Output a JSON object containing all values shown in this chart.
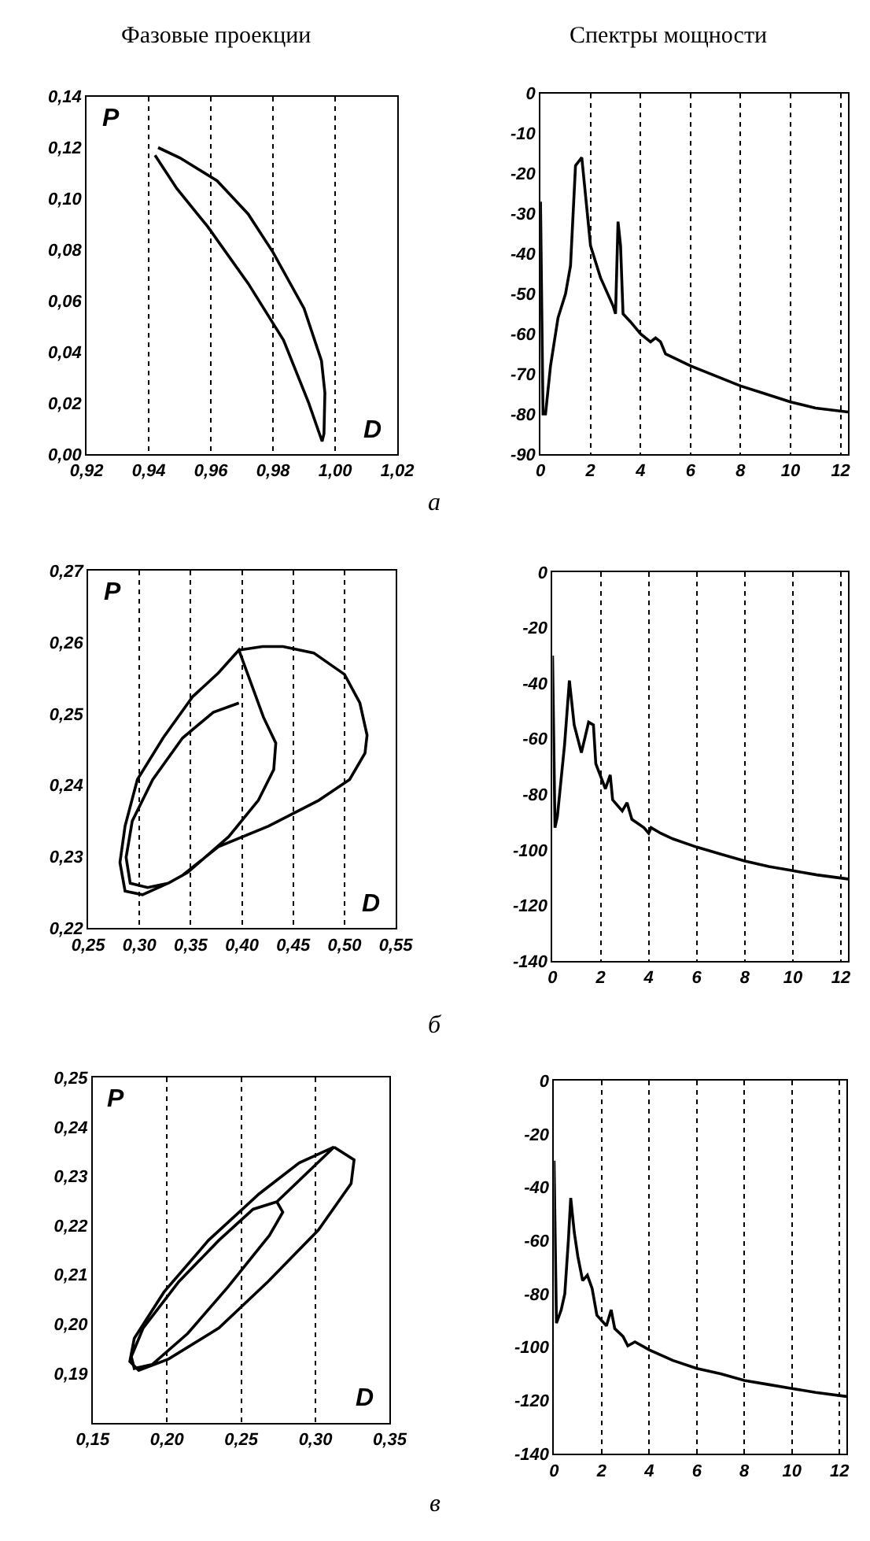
{
  "chart_data": [
    {
      "type": "line",
      "title": "Фазовые проекции",
      "xlabel": "D",
      "ylabel": "P",
      "annotations": [
        "а"
      ],
      "grid": "x",
      "line_style": "solid",
      "xlim": [
        0.92,
        1.02
      ],
      "xticks": [
        {
          "value": 0.92,
          "label": "0,92"
        },
        {
          "value": 0.94,
          "label": "0,94"
        },
        {
          "value": 0.96,
          "label": "0,96"
        },
        {
          "value": 0.98,
          "label": "0,98"
        },
        {
          "value": 1.0,
          "label": "1,00"
        },
        {
          "value": 1.02,
          "label": "1,02"
        }
      ],
      "ylim": [
        0,
        0.14
      ],
      "yticks": [
        {
          "value": 0,
          "label": "0,00"
        },
        {
          "value": 0.02,
          "label": "0,02"
        },
        {
          "value": 0.04,
          "label": "0,04"
        },
        {
          "value": 0.06,
          "label": "0,06"
        },
        {
          "value": 0.08,
          "label": "0,08"
        },
        {
          "value": 0.1,
          "label": "0,10"
        },
        {
          "value": 0.12,
          "label": "0,12"
        },
        {
          "value": 0.14,
          "label": "0,14"
        }
      ],
      "series": [
        {
          "color": "#000000",
          "x": [
            0.943,
            0.95,
            0.962,
            0.972,
            0.98,
            0.99,
            0.9956,
            0.9967,
            0.9964,
            0.9958,
            0.9915,
            0.9834,
            0.972,
            0.959,
            0.949,
            0.942
          ],
          "values": [
            0.12,
            0.116,
            0.107,
            0.094,
            0.079,
            0.057,
            0.0365,
            0.024,
            0.008,
            0.005,
            0.02,
            0.0446,
            0.0668,
            0.089,
            0.104,
            0.117
          ]
        }
      ]
    },
    {
      "type": "line",
      "title": "Спектры мощности",
      "grid": "x",
      "line_style": "solid",
      "xlim": [
        0,
        12.3
      ],
      "xticks": [
        0,
        2,
        4,
        6,
        8,
        10,
        12
      ],
      "ylim": [
        -90,
        0
      ],
      "yticks": [
        -90,
        -80,
        -70,
        -60,
        -50,
        -40,
        -30,
        -20,
        -10,
        0
      ],
      "series": [
        {
          "color": "#000000",
          "x": [
            0,
            0.1,
            0.2,
            0.4,
            0.7,
            1.0,
            1.2,
            1.4,
            1.65,
            2.0,
            2.4,
            2.9,
            3.0,
            3.1,
            3.2,
            3.3,
            3.6,
            4.0,
            4.4,
            4.6,
            4.8,
            5.0,
            6,
            7,
            8,
            9,
            10,
            11,
            12.3
          ],
          "values": [
            -27,
            -80,
            -80,
            -68,
            -56,
            -50,
            -43,
            -18,
            -16,
            -38,
            -46,
            -53,
            -55,
            -32,
            -38,
            -55,
            -57,
            -60,
            -62,
            -61,
            -62,
            -65,
            -68,
            -70.5,
            -73,
            -75,
            -77,
            -78.5,
            -79.5
          ]
        }
      ]
    },
    {
      "type": "line",
      "xlabel": "D",
      "ylabel": "P",
      "annotations": [
        "б"
      ],
      "grid": "x",
      "line_style": "solid",
      "xlim": [
        0.25,
        0.55
      ],
      "xticks": [
        {
          "value": 0.25,
          "label": "0,25"
        },
        {
          "value": 0.3,
          "label": "0,30"
        },
        {
          "value": 0.35,
          "label": "0,35"
        },
        {
          "value": 0.4,
          "label": "0,40"
        },
        {
          "value": 0.45,
          "label": "0,45"
        },
        {
          "value": 0.5,
          "label": "0,50"
        },
        {
          "value": 0.55,
          "label": "0,55"
        }
      ],
      "ylim": [
        0.22,
        0.27
      ],
      "yticks": [
        {
          "value": 0.22,
          "label": "0,22"
        },
        {
          "value": 0.23,
          "label": "0,23"
        },
        {
          "value": 0.24,
          "label": "0,24"
        },
        {
          "value": 0.25,
          "label": "0,25"
        },
        {
          "value": 0.26,
          "label": "0,26"
        },
        {
          "value": 0.27,
          "label": "0,27"
        }
      ],
      "series": [
        {
          "color": "#000000",
          "x": [
            0.397,
            0.42,
            0.44,
            0.47,
            0.5,
            0.515,
            0.522,
            0.52,
            0.505,
            0.475,
            0.426,
            0.377,
            0.342,
            0.328,
            0.303,
            0.286,
            0.281,
            0.286,
            0.298,
            0.323,
            0.352,
            0.377,
            0.397,
            0.421,
            0.433,
            0.431,
            0.416,
            0.387,
            0.347,
            0.328,
            0.308,
            0.291,
            0.287,
            0.293,
            0.313,
            0.342,
            0.372,
            0.397
          ],
          "values": [
            0.2589,
            0.2594,
            0.2594,
            0.2585,
            0.2555,
            0.2515,
            0.247,
            0.2445,
            0.2408,
            0.2379,
            0.2343,
            0.2314,
            0.2274,
            0.2263,
            0.2247,
            0.2252,
            0.2292,
            0.2343,
            0.2408,
            0.2466,
            0.2524,
            0.2557,
            0.2589,
            0.2495,
            0.2459,
            0.2422,
            0.2379,
            0.2328,
            0.2278,
            0.2263,
            0.2257,
            0.2263,
            0.2299,
            0.235,
            0.2408,
            0.2466,
            0.2502,
            0.2515
          ]
        }
      ]
    },
    {
      "type": "line",
      "grid": "x",
      "line_style": "solid",
      "xlim": [
        0,
        12.3
      ],
      "xticks": [
        0,
        2,
        4,
        6,
        8,
        10,
        12
      ],
      "ylim": [
        -140,
        0
      ],
      "yticks": [
        -140,
        -120,
        -100,
        -80,
        -60,
        -40,
        -20,
        0
      ],
      "series": [
        {
          "color": "#000000",
          "x": [
            0,
            0.1,
            0.2,
            0.5,
            0.7,
            0.9,
            1.2,
            1.5,
            1.7,
            1.8,
            2.2,
            2.4,
            2.5,
            2.9,
            3.1,
            3.3,
            3.8,
            4.0,
            4.1,
            4.5,
            5,
            6,
            7,
            8,
            9,
            10,
            11,
            12.3
          ],
          "values": [
            -30,
            -92,
            -88,
            -62,
            -39,
            -55,
            -65,
            -54,
            -55,
            -69,
            -78,
            -73,
            -82,
            -86,
            -83,
            -89,
            -92,
            -94,
            -92,
            -94,
            -96,
            -99,
            -101.5,
            -104,
            -106,
            -107.5,
            -109,
            -110.5
          ]
        }
      ]
    },
    {
      "type": "line",
      "xlabel": "D",
      "ylabel": "P",
      "annotations": [
        "в"
      ],
      "grid": "x",
      "line_style": "solid",
      "xlim": [
        0.15,
        0.35
      ],
      "xticks": [
        {
          "value": 0.15,
          "label": "0,15"
        },
        {
          "value": 0.2,
          "label": "0,20"
        },
        {
          "value": 0.25,
          "label": "0,25"
        },
        {
          "value": 0.3,
          "label": "0,30"
        },
        {
          "value": 0.35,
          "label": "0,35"
        }
      ],
      "ylim": [
        0.18,
        0.25
      ],
      "yticks": [
        {
          "value": 0.19,
          "label": "0,19"
        },
        {
          "value": 0.2,
          "label": "0,20"
        },
        {
          "value": 0.21,
          "label": "0,21"
        },
        {
          "value": 0.22,
          "label": "0,22"
        },
        {
          "value": 0.23,
          "label": "0,23"
        },
        {
          "value": 0.24,
          "label": "0,24"
        },
        {
          "value": 0.25,
          "label": "0,25"
        }
      ],
      "series": [
        {
          "color": "#000000",
          "x": [
            0.3125,
            0.326,
            0.324,
            0.302,
            0.268,
            0.235,
            0.201,
            0.181,
            0.175,
            0.178,
            0.198,
            0.228,
            0.262,
            0.289,
            0.3125,
            0.274,
            0.278,
            0.269,
            0.241,
            0.214,
            0.19,
            0.178,
            0.176,
            0.184,
            0.208,
            0.235,
            0.258,
            0.274
          ],
          "values": [
            0.2359,
            0.2333,
            0.2285,
            0.2191,
            0.2086,
            0.1992,
            0.1929,
            0.1906,
            0.1924,
            0.1971,
            0.2065,
            0.217,
            0.2264,
            0.2327,
            0.2359,
            0.2248,
            0.2227,
            0.218,
            0.2075,
            0.1981,
            0.1918,
            0.191,
            0.1934,
            0.1992,
            0.2086,
            0.217,
            0.2233,
            0.2248
          ]
        }
      ]
    },
    {
      "type": "line",
      "grid": "x",
      "line_style": "solid",
      "xlim": [
        0,
        12.3
      ],
      "xticks": [
        0,
        2,
        4,
        6,
        8,
        10,
        12
      ],
      "ylim": [
        -140,
        0
      ],
      "yticks": [
        -140,
        -120,
        -100,
        -80,
        -60,
        -40,
        -20,
        0
      ],
      "series": [
        {
          "color": "#000000",
          "x": [
            0,
            0.1,
            0.3,
            0.45,
            0.6,
            0.7,
            0.85,
            1.0,
            1.2,
            1.4,
            1.6,
            1.8,
            2.2,
            2.4,
            2.55,
            2.9,
            3.1,
            3.4,
            4,
            5,
            6,
            7,
            8,
            9,
            10,
            11,
            12.3
          ],
          "values": [
            -30,
            -91,
            -86,
            -80,
            -60,
            -44,
            -57,
            -66,
            -75,
            -73,
            -78,
            -88,
            -92,
            -86,
            -93,
            -96,
            -99.5,
            -98,
            -101,
            -105,
            -108,
            -110,
            -112.5,
            -114,
            -115.5,
            -117,
            -118.5
          ]
        }
      ]
    }
  ]
}
